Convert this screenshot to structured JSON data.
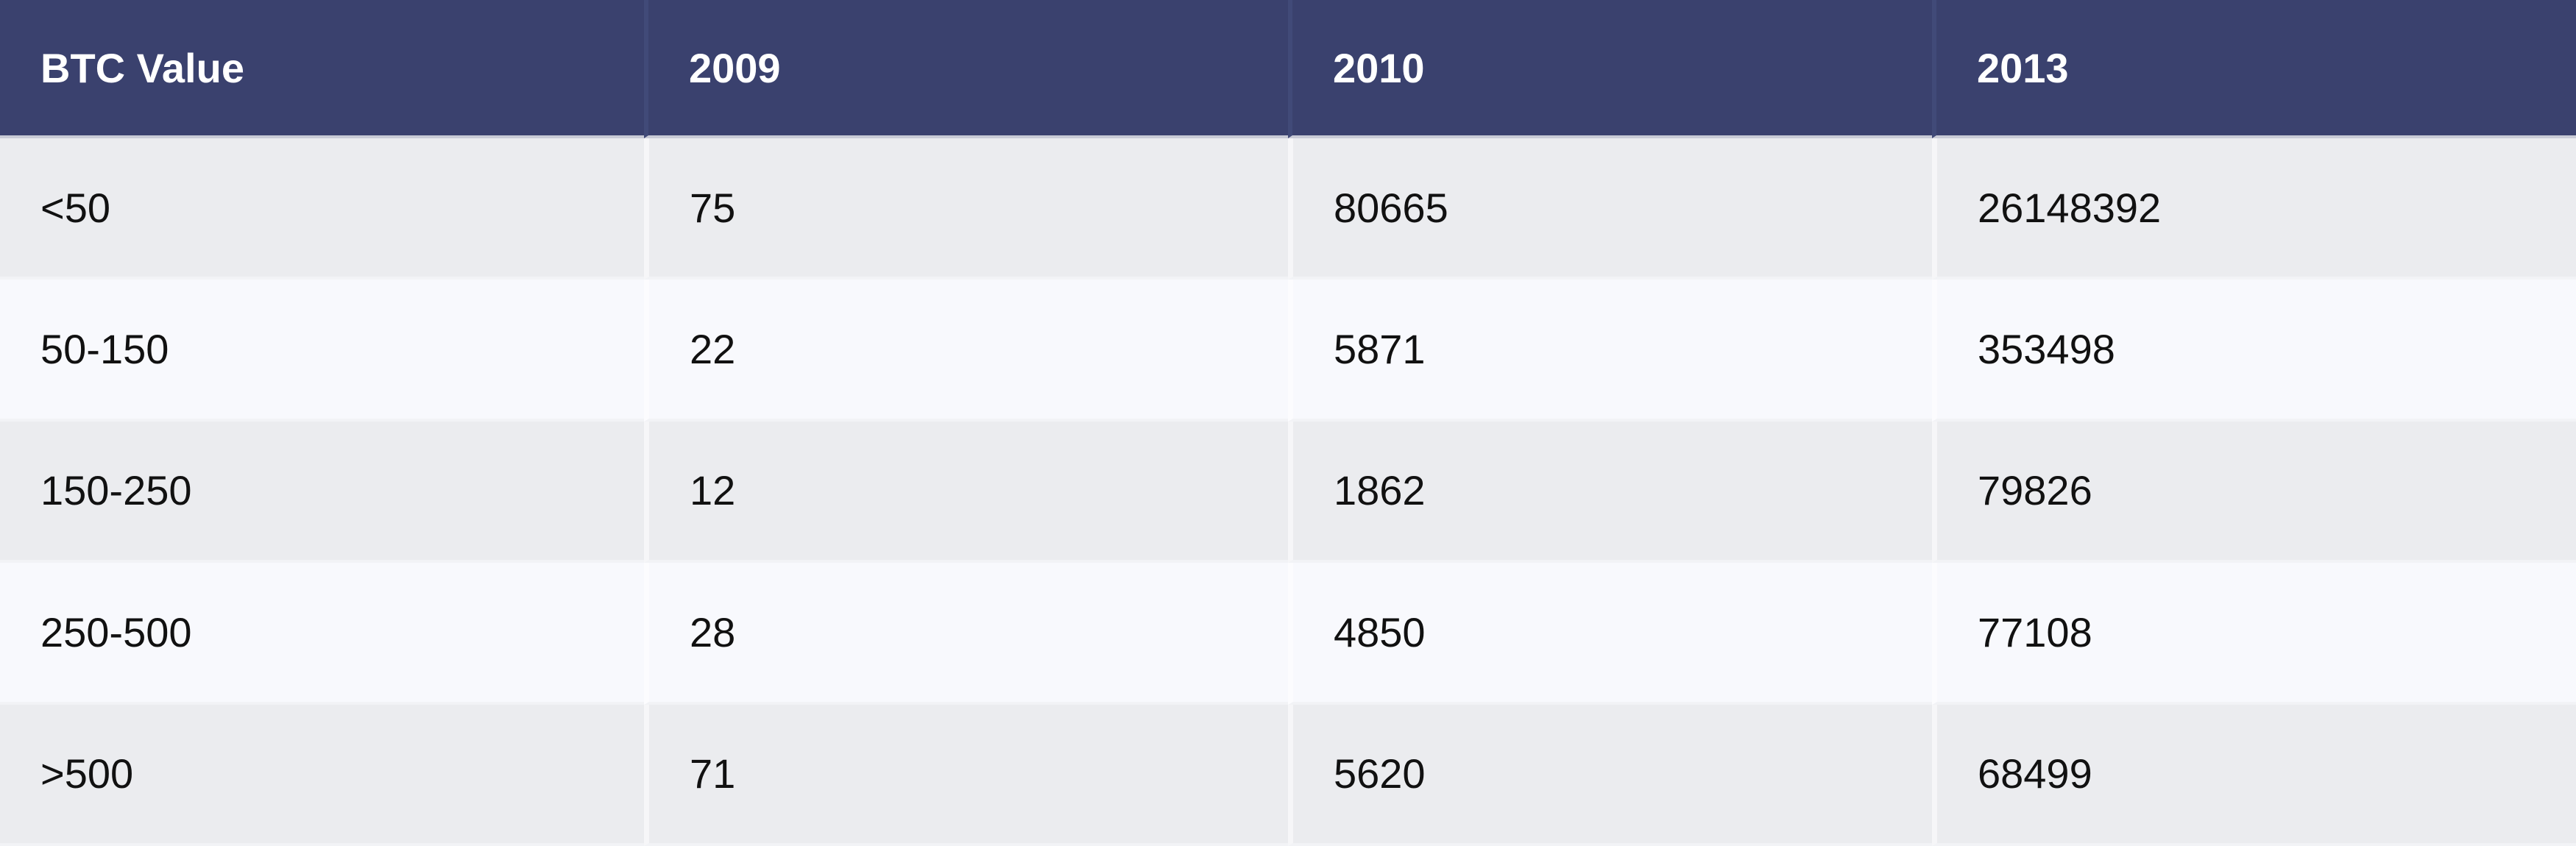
{
  "chart_data": {
    "type": "table",
    "columns": [
      "BTC Value",
      "2009",
      "2010",
      "2013"
    ],
    "rows": [
      [
        "<50",
        "75",
        "80665",
        "26148392"
      ],
      [
        "50-150",
        "22",
        "5871",
        "353498"
      ],
      [
        "150-250",
        "12",
        "1862",
        "79826"
      ],
      [
        "250-500",
        "28",
        "4850",
        "77108"
      ],
      [
        ">500",
        "71",
        "5620",
        "68499"
      ]
    ]
  },
  "colors": {
    "header_bg": "#3a416e",
    "header_text": "#ffffff",
    "row_odd_bg": "#ebecef",
    "row_even_bg": "#f8f9fd"
  }
}
